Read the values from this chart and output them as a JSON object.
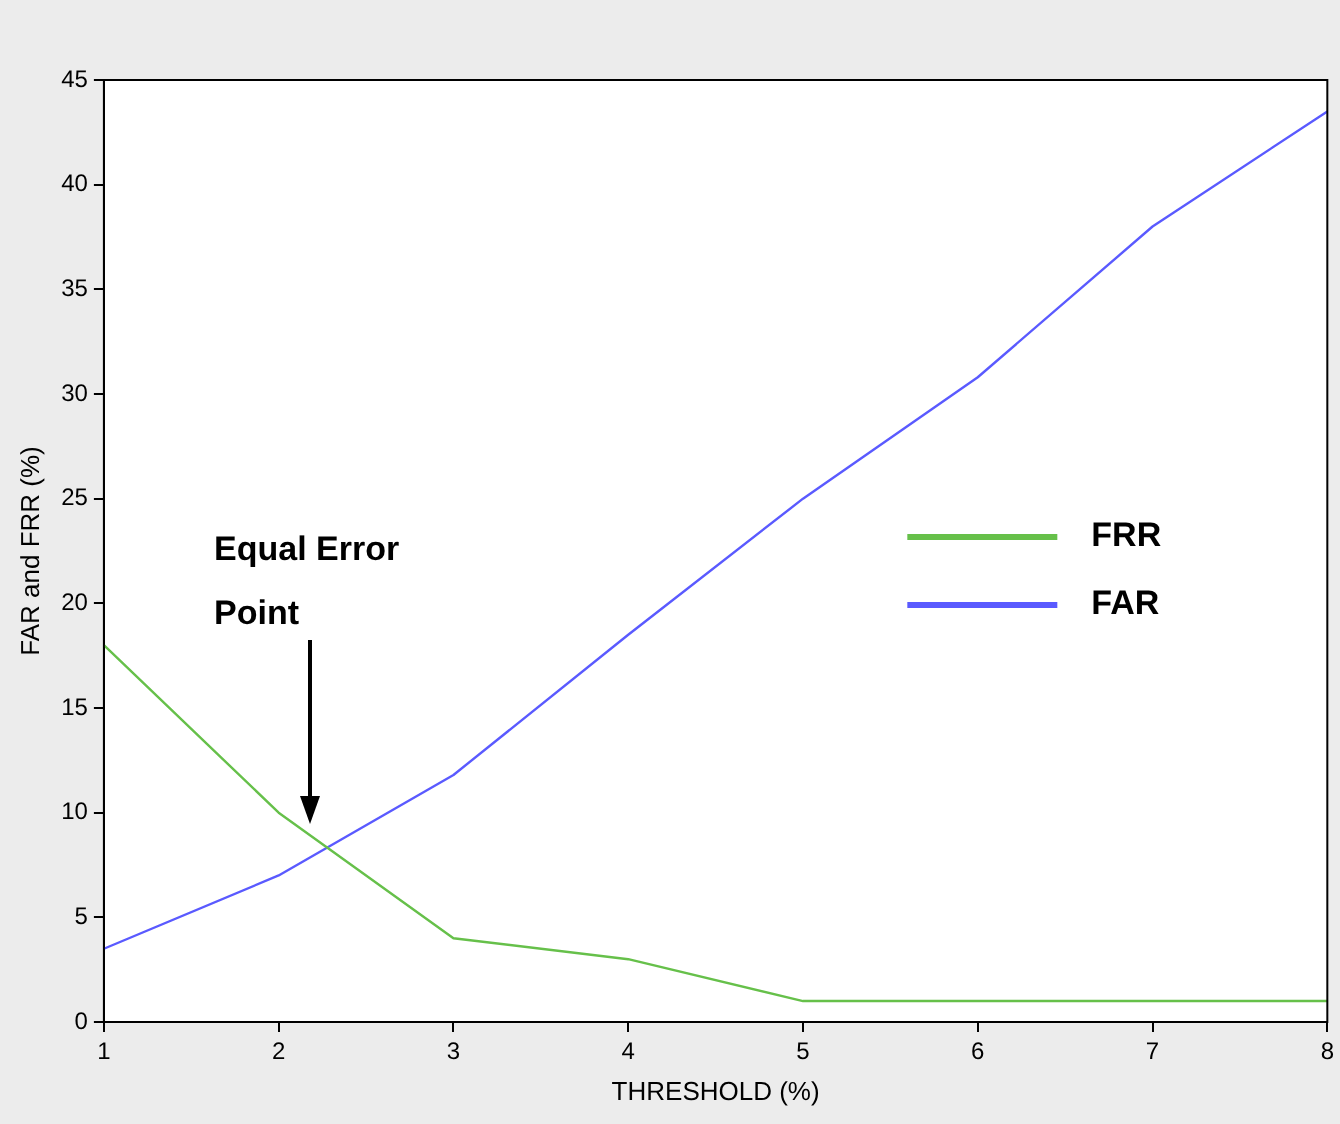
{
  "chart_data": {
    "type": "line",
    "xlabel": "THRESHOLD (%)",
    "ylabel": "FAR and FRR (%)",
    "x": [
      1,
      2,
      3,
      4,
      5,
      6,
      7,
      8
    ],
    "series": [
      {
        "name": "FRR",
        "color": "#66c04a",
        "values": [
          18,
          10,
          4,
          3,
          1,
          1,
          1,
          1
        ]
      },
      {
        "name": "FAR",
        "color": "#5a5aff",
        "values": [
          3.5,
          7,
          11.8,
          18.5,
          25,
          30.8,
          38,
          43.5
        ]
      }
    ],
    "xlim": [
      1,
      8
    ],
    "xticks": [
      1,
      2,
      3,
      4,
      5,
      6,
      7,
      8
    ],
    "ylim": [
      0,
      45
    ],
    "yticks": [
      0,
      5,
      10,
      15,
      20,
      25,
      30,
      35,
      40,
      45
    ],
    "grid": false,
    "legend": "right",
    "marker": "none",
    "line_style": "solid",
    "annotations": [
      "Equal Error Point"
    ]
  }
}
